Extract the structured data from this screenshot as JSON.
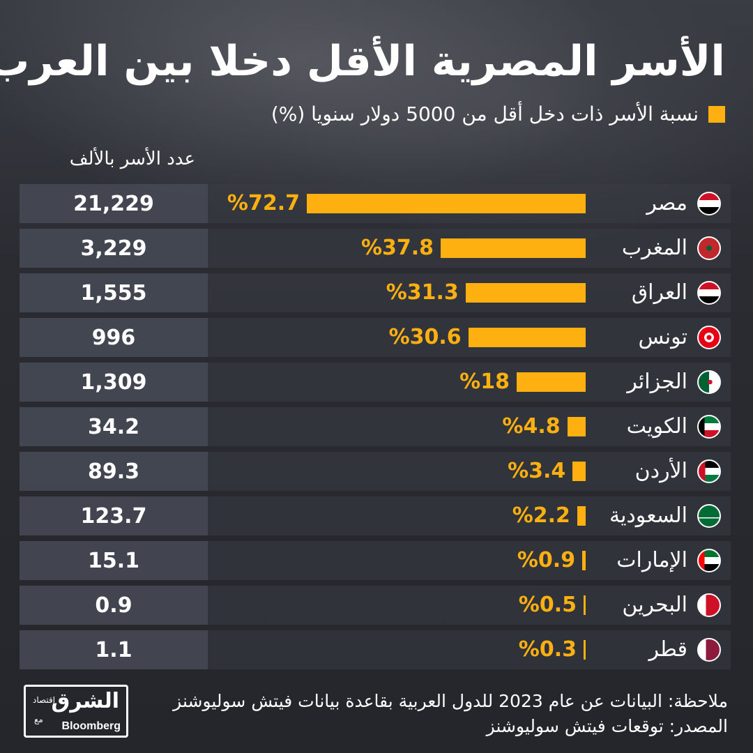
{
  "title": "الأسر المصرية الأقل دخلا بين العرب",
  "colors": {
    "accent": "#fdb00f",
    "background": "#23252b",
    "text": "#ffffff"
  },
  "chart_data": {
    "type": "bar",
    "orientation": "horizontal",
    "legend": "نسبة الأسر ذات دخل أقل من 5000 دولار سنويا (%)",
    "count_column_header": "عدد الأسر بالألف",
    "categories": [
      "مصر",
      "المغرب",
      "العراق",
      "تونس",
      "الجزائر",
      "الكويت",
      "الأردن",
      "السعودية",
      "الإمارات",
      "البحرين",
      "قطر"
    ],
    "flags": [
      "egypt-flag-icon",
      "morocco-flag-icon",
      "iraq-flag-icon",
      "tunisia-flag-icon",
      "algeria-flag-icon",
      "kuwait-flag-icon",
      "jordan-flag-icon",
      "saudi-flag-icon",
      "uae-flag-icon",
      "bahrain-flag-icon",
      "qatar-flag-icon"
    ],
    "values": [
      72.7,
      37.8,
      31.3,
      30.6,
      18,
      4.8,
      3.4,
      2.2,
      0.9,
      0.5,
      0.3
    ],
    "value_labels": [
      "%72.7",
      "%37.8",
      "%31.3",
      "%30.6",
      "%18",
      "%4.8",
      "%3.4",
      "%2.2",
      "%0.9",
      "%0.5",
      "%0.3"
    ],
    "household_counts": [
      "21,229",
      "3,229",
      "1,555",
      "996",
      "1,309",
      "34.2",
      "89.3",
      "123.7",
      "15.1",
      "0.9",
      "1.1"
    ],
    "xlim": [
      0,
      72.7
    ]
  },
  "footer": {
    "note": "ملاحظة: البيانات عن عام 2023 للدول العربية بقاعدة بيانات فيتش سوليوشنز",
    "source": "المصدر: توقعات فيتش سوليوشنز"
  },
  "logo": {
    "arabic": "الشرق",
    "sub": "اقتصاد",
    "with": "مع",
    "english": "Bloomberg"
  }
}
